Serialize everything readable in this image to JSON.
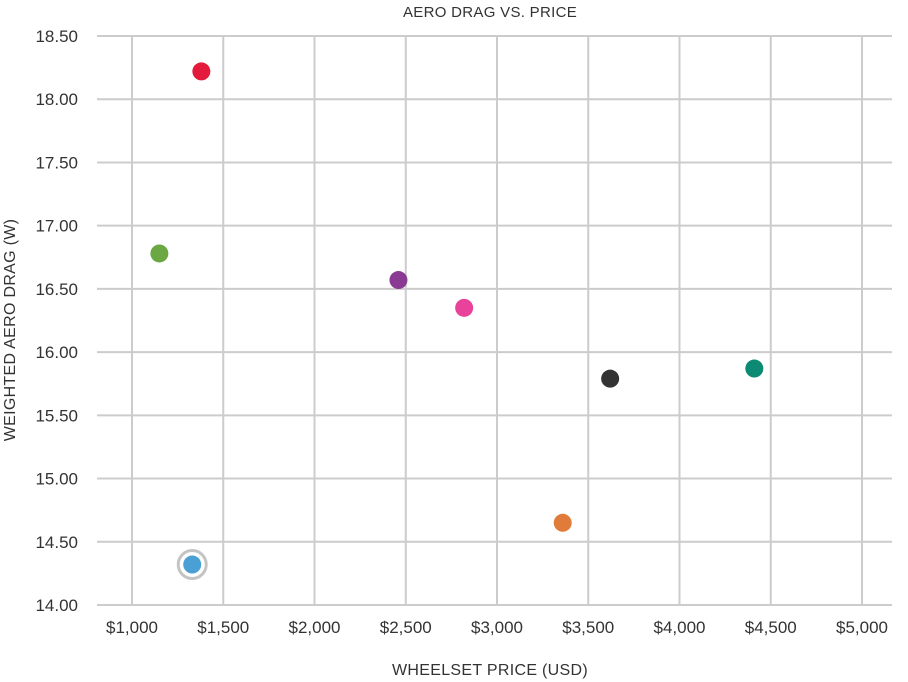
{
  "chart_data": {
    "type": "scatter",
    "title": "AERO DRAG VS. PRICE",
    "xlabel": "WHEELSET PRICE (USD)",
    "ylabel": "WEIGHTED AERO DRAG (W)",
    "xlim": [
      1000,
      5000
    ],
    "ylim": [
      14.0,
      18.5
    ],
    "x_ticks": [
      1000,
      1500,
      2000,
      2500,
      3000,
      3500,
      4000,
      4500,
      5000
    ],
    "x_tick_labels": [
      "$1,000",
      "$1,500",
      "$2,000",
      "$2,500",
      "$3,000",
      "$3,500",
      "$4,000",
      "$4,500",
      "$5,000"
    ],
    "y_ticks": [
      14.0,
      14.5,
      15.0,
      15.5,
      16.0,
      16.5,
      17.0,
      17.5,
      18.0,
      18.5
    ],
    "y_tick_labels": [
      "14.00",
      "14.50",
      "15.00",
      "15.50",
      "16.00",
      "16.50",
      "17.00",
      "17.50",
      "18.00",
      "18.50"
    ],
    "grid": true,
    "legend": "none",
    "points": [
      {
        "x": 1380,
        "y": 18.22,
        "color": "#e31a3c",
        "highlighted": false
      },
      {
        "x": 1150,
        "y": 16.78,
        "color": "#6ba844",
        "highlighted": false
      },
      {
        "x": 2460,
        "y": 16.57,
        "color": "#8b3a93",
        "highlighted": false
      },
      {
        "x": 2820,
        "y": 16.35,
        "color": "#e8429b",
        "highlighted": false
      },
      {
        "x": 3620,
        "y": 15.79,
        "color": "#333333",
        "highlighted": false
      },
      {
        "x": 4410,
        "y": 15.87,
        "color": "#0c8a73",
        "highlighted": false
      },
      {
        "x": 3360,
        "y": 14.65,
        "color": "#e07b3a",
        "highlighted": false
      },
      {
        "x": 1330,
        "y": 14.32,
        "color": "#4a9fd4",
        "highlighted": true
      }
    ]
  }
}
